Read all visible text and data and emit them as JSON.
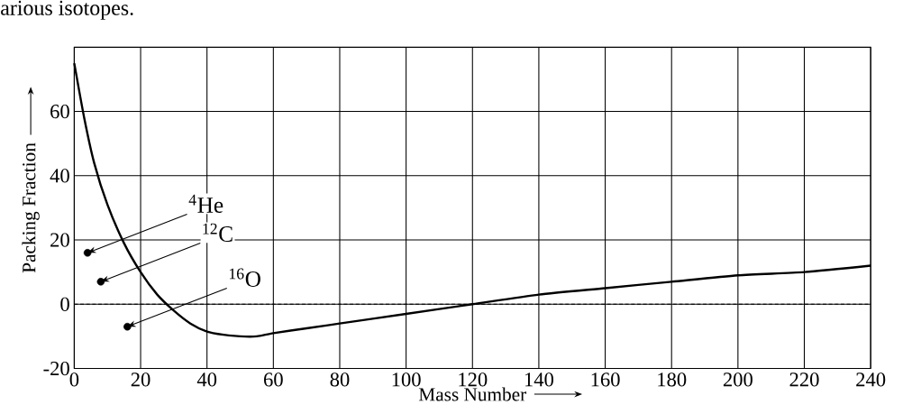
{
  "chart_data": {
    "type": "line",
    "title": "arious isotopes.",
    "xlabel": "Mass Number",
    "ylabel": "Packing Fraction",
    "xlim": [
      0,
      240
    ],
    "ylim": [
      -20,
      80
    ],
    "xticks": [
      0,
      20,
      40,
      60,
      80,
      100,
      120,
      140,
      160,
      180,
      200,
      220,
      240
    ],
    "yticks": [
      -20,
      0,
      20,
      40,
      60
    ],
    "grid": true,
    "series": [
      {
        "color": "#000000",
        "marker": "none",
        "x": [
          0,
          3,
          6,
          10,
          15,
          20,
          25,
          30,
          35,
          40,
          45,
          50,
          55,
          60,
          70,
          80,
          100,
          120,
          140,
          160,
          180,
          200,
          220,
          240
        ],
        "values": [
          75,
          58,
          44,
          31,
          19,
          10,
          3,
          -2,
          -6,
          -8.5,
          -9.5,
          -10,
          -10,
          -9,
          -7.5,
          -6,
          -3,
          0,
          3,
          5,
          7,
          9,
          10,
          12
        ]
      },
      {
        "type": "scatter",
        "color": "#000000",
        "marker": "circle",
        "x": [
          4,
          8,
          16
        ],
        "values": [
          16,
          7,
          -7
        ]
      }
    ],
    "ref_lines": [
      {
        "axis": "y",
        "value": 0,
        "line_style": "dashed"
      }
    ],
    "annotations": [
      {
        "text": "$^{4}$He",
        "x": 4,
        "y": 16
      },
      {
        "text": "$^{12}$C",
        "x": 8,
        "y": 7
      },
      {
        "text": "$^{16}$O",
        "x": 16,
        "y": -7
      }
    ]
  }
}
